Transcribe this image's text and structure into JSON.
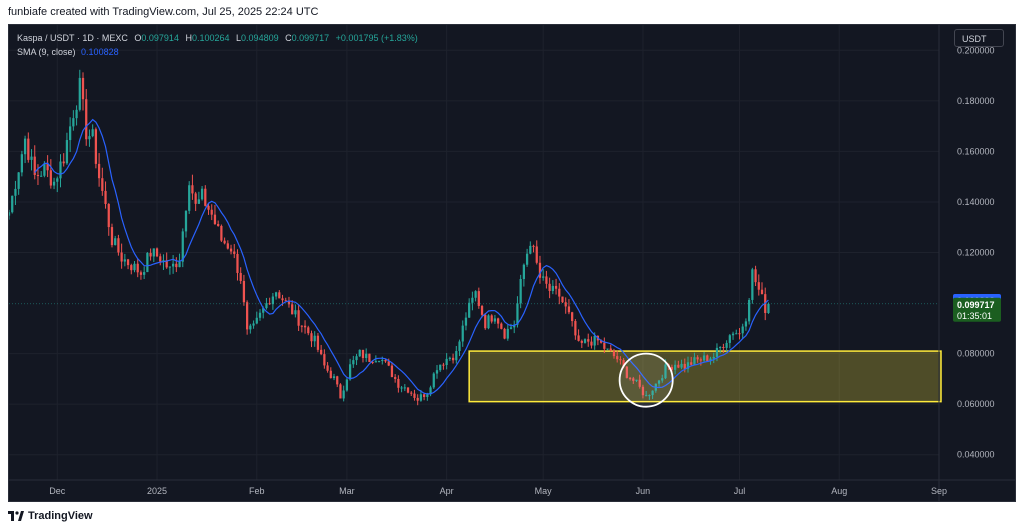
{
  "header": {
    "creator_text": "funbiafe created with TradingView.com, Jul 25, 2025 22:24 UTC"
  },
  "legend": {
    "symbol": "Kaspa / USDT · 1D · MEXC",
    "open_label": "O",
    "open": "0.097914",
    "high_label": "H",
    "high": "0.100264",
    "low_label": "L",
    "low": "0.094809",
    "close_label": "C",
    "close": "0.099717",
    "change": "+0.001795 (+1.83%)",
    "sma_label": "SMA (9, close)",
    "sma_value": "0.100828"
  },
  "currency_button": "USDT",
  "footer": {
    "brand": "TradingView"
  },
  "colors": {
    "up": "#26a69a",
    "down": "#ef5350",
    "sma": "#2962ff",
    "zone_border": "#ffeb3b",
    "background": "#131722"
  },
  "chart_data": {
    "type": "candlestick",
    "title": "Kaspa / USDT · 1D · MEXC",
    "ylim": [
      0.03,
      0.21
    ],
    "y_ticks": [
      0.2,
      0.18,
      0.16,
      0.14,
      0.12,
      0.08,
      0.06,
      0.04
    ],
    "y_tick_labels": [
      "0.200000",
      "0.180000",
      "0.160000",
      "0.140000",
      "0.120000",
      "0.080000",
      "0.060000",
      "0.040000"
    ],
    "x_labels": [
      "Dec",
      "2025",
      "Feb",
      "Mar",
      "Apr",
      "May",
      "Jun",
      "Jul",
      "Aug",
      "Sep"
    ],
    "x_label_days": [
      15,
      46,
      77,
      105,
      136,
      166,
      197,
      227,
      258,
      289
    ],
    "x_range_days": [
      0,
      289
    ],
    "last_day": 236,
    "price_labels": {
      "sma": {
        "value": 0.100828,
        "text": "0.100828"
      },
      "close": {
        "value": 0.099717,
        "text": "0.099717",
        "countdown": "01:35:01"
      }
    },
    "support_zone": {
      "y_low": 0.061,
      "y_high": 0.081,
      "x_start_day": 143
    },
    "highlight_circle": {
      "center_day": 198,
      "center_price": 0.0695,
      "radius_price": 0.0105
    },
    "anchors": [
      [
        0,
        0.136
      ],
      [
        2,
        0.148
      ],
      [
        5,
        0.165
      ],
      [
        8,
        0.15
      ],
      [
        11,
        0.153
      ],
      [
        14,
        0.148
      ],
      [
        17,
        0.158
      ],
      [
        20,
        0.176
      ],
      [
        22,
        0.185
      ],
      [
        24,
        0.168
      ],
      [
        26,
        0.165
      ],
      [
        28,
        0.15
      ],
      [
        30,
        0.138
      ],
      [
        32,
        0.125
      ],
      [
        35,
        0.118
      ],
      [
        38,
        0.115
      ],
      [
        41,
        0.112
      ],
      [
        44,
        0.12
      ],
      [
        47,
        0.118
      ],
      [
        50,
        0.113
      ],
      [
        53,
        0.118
      ],
      [
        56,
        0.15
      ],
      [
        58,
        0.138
      ],
      [
        60,
        0.142
      ],
      [
        63,
        0.135
      ],
      [
        66,
        0.125
      ],
      [
        69,
        0.122
      ],
      [
        72,
        0.11
      ],
      [
        74,
        0.088
      ],
      [
        76,
        0.09
      ],
      [
        78,
        0.095
      ],
      [
        81,
        0.102
      ],
      [
        83,
        0.105
      ],
      [
        86,
        0.1
      ],
      [
        89,
        0.095
      ],
      [
        92,
        0.09
      ],
      [
        95,
        0.085
      ],
      [
        98,
        0.075
      ],
      [
        101,
        0.07
      ],
      [
        103,
        0.063
      ],
      [
        106,
        0.075
      ],
      [
        109,
        0.08
      ],
      [
        112,
        0.078
      ],
      [
        115,
        0.079
      ],
      [
        118,
        0.074
      ],
      [
        121,
        0.068
      ],
      [
        124,
        0.066
      ],
      [
        127,
        0.062
      ],
      [
        130,
        0.065
      ],
      [
        133,
        0.075
      ],
      [
        136,
        0.078
      ],
      [
        139,
        0.08
      ],
      [
        142,
        0.095
      ],
      [
        145,
        0.104
      ],
      [
        148,
        0.092
      ],
      [
        151,
        0.096
      ],
      [
        154,
        0.088
      ],
      [
        157,
        0.092
      ],
      [
        160,
        0.115
      ],
      [
        162,
        0.125
      ],
      [
        165,
        0.11
      ],
      [
        168,
        0.105
      ],
      [
        171,
        0.103
      ],
      [
        174,
        0.095
      ],
      [
        177,
        0.083
      ],
      [
        180,
        0.085
      ],
      [
        183,
        0.085
      ],
      [
        186,
        0.081
      ],
      [
        189,
        0.078
      ],
      [
        192,
        0.072
      ],
      [
        195,
        0.068
      ],
      [
        198,
        0.063
      ],
      [
        201,
        0.068
      ],
      [
        204,
        0.074
      ],
      [
        207,
        0.076
      ],
      [
        210,
        0.075
      ],
      [
        213,
        0.077
      ],
      [
        216,
        0.078
      ],
      [
        219,
        0.079
      ],
      [
        222,
        0.084
      ],
      [
        225,
        0.089
      ],
      [
        227,
        0.088
      ],
      [
        229,
        0.095
      ],
      [
        231,
        0.112
      ],
      [
        233,
        0.105
      ],
      [
        235,
        0.098
      ],
      [
        236,
        0.0997
      ]
    ]
  }
}
